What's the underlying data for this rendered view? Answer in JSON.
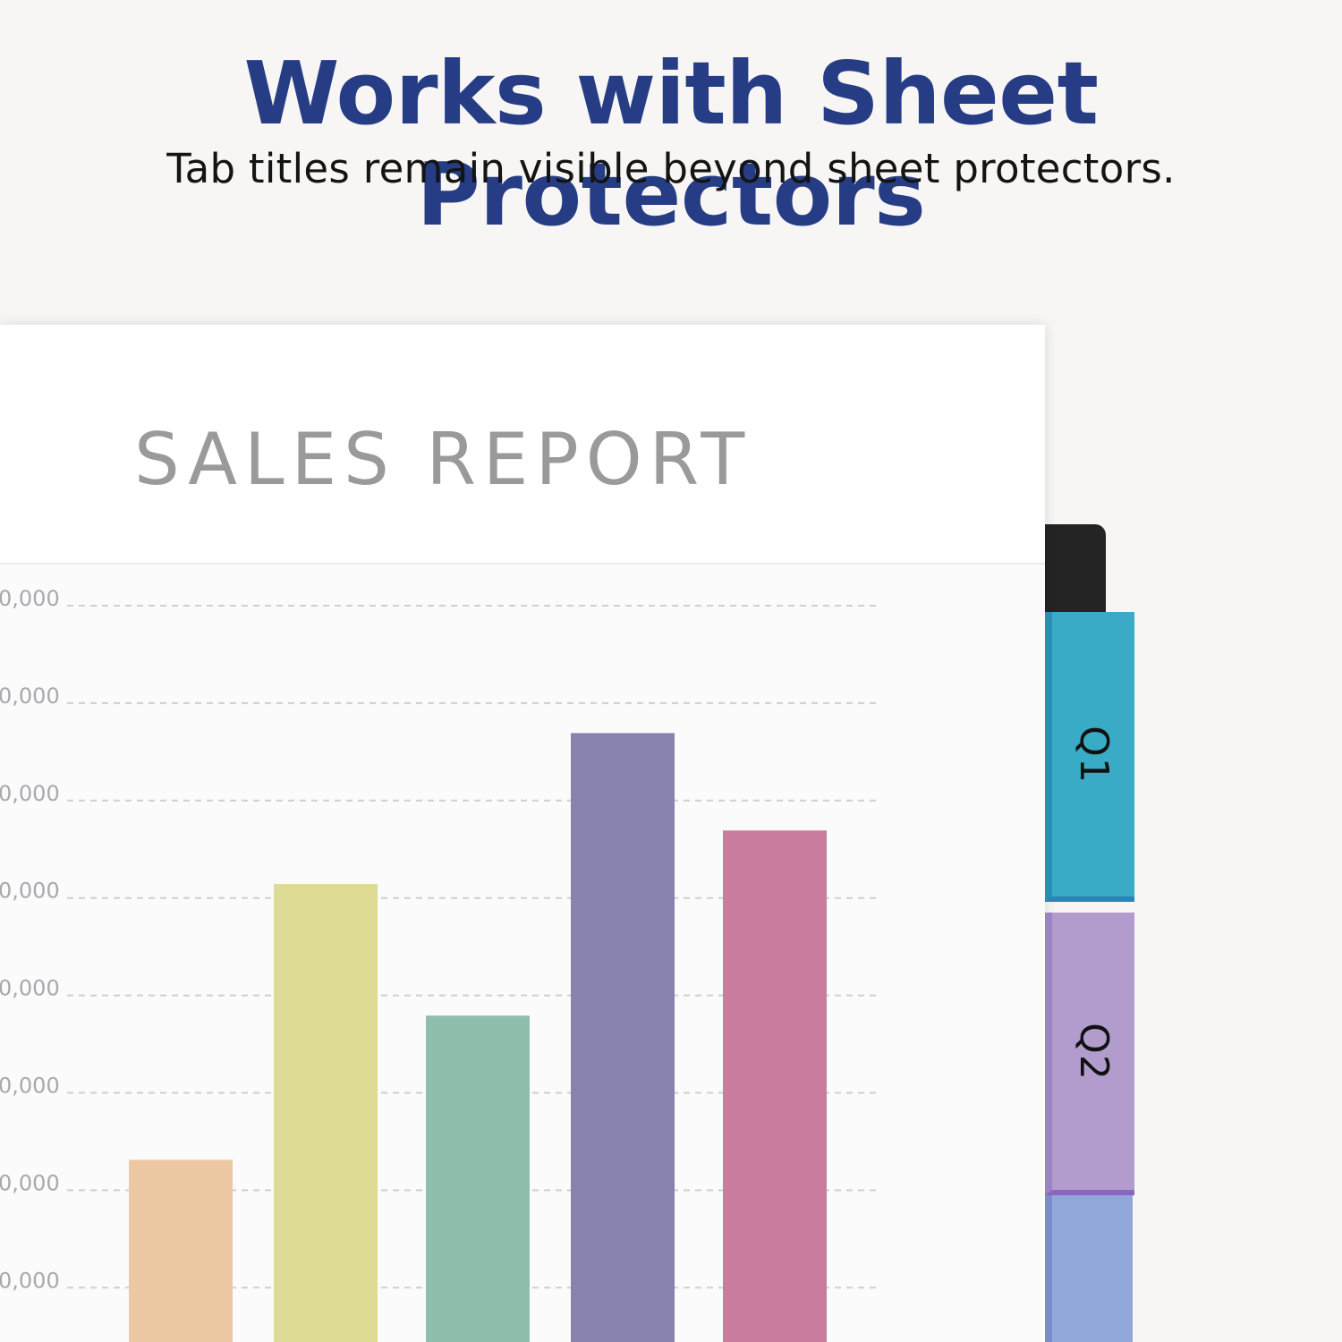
{
  "header": {
    "title": "Works with Sheet Protectors",
    "subtitle": "Tab titles remain visible beyond sheet protectors."
  },
  "report": {
    "title": "SALES REPORT"
  },
  "tabs": [
    {
      "label": "Q1",
      "color": "#39abc6"
    },
    {
      "label": "Q2",
      "color": "#b19ccd"
    },
    {
      "label": "",
      "color": "#92a7d9"
    }
  ],
  "chart_data": {
    "type": "bar",
    "y_tick_labels": [
      "0,000",
      "0,000",
      "0,000",
      "0,000",
      "0,000",
      "0,000",
      "0,000",
      "0,000"
    ],
    "values": [
      1.87,
      4.7,
      3.35,
      6.25,
      5.25
    ],
    "ylim": [
      0,
      7.0
    ],
    "colors": [
      "#edc9a3",
      "#dedb95",
      "#8fbfac",
      "#8883ad",
      "#c97c9d"
    ],
    "grid": true
  }
}
